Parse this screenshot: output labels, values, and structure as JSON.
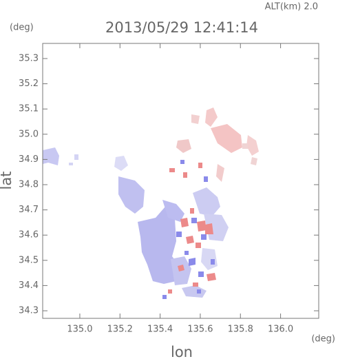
{
  "chart_data": {
    "type": "map",
    "title": "2013/05/29 12:41:14",
    "subtitle": "ALT(km) 2.0",
    "x_label": "lon",
    "y_label": "lat",
    "x_unit": "(deg)",
    "y_unit": "(deg)",
    "xlim": [
      134.815,
      136.19
    ],
    "ylim": [
      34.27,
      35.36
    ],
    "xticks": [
      {
        "value": 135.0,
        "label": "135.0"
      },
      {
        "value": 135.2,
        "label": "135.2"
      },
      {
        "value": 135.4,
        "label": "135.4"
      },
      {
        "value": 135.6,
        "label": "135.6"
      },
      {
        "value": 135.8,
        "label": "135.8"
      },
      {
        "value": 136.0,
        "label": "136.0"
      }
    ],
    "yticks": [
      {
        "value": 34.3,
        "label": "34.3"
      },
      {
        "value": 34.4,
        "label": "34.4"
      },
      {
        "value": 34.5,
        "label": "34.5"
      },
      {
        "value": 34.6,
        "label": "34.6"
      },
      {
        "value": 34.7,
        "label": "34.7"
      },
      {
        "value": 34.8,
        "label": "34.8"
      },
      {
        "value": 34.9,
        "label": "34.9"
      },
      {
        "value": 35.0,
        "label": "35.0"
      },
      {
        "value": 35.1,
        "label": "35.1"
      },
      {
        "value": 35.2,
        "label": "35.2"
      },
      {
        "value": 35.3,
        "label": "35.3"
      }
    ]
  }
}
